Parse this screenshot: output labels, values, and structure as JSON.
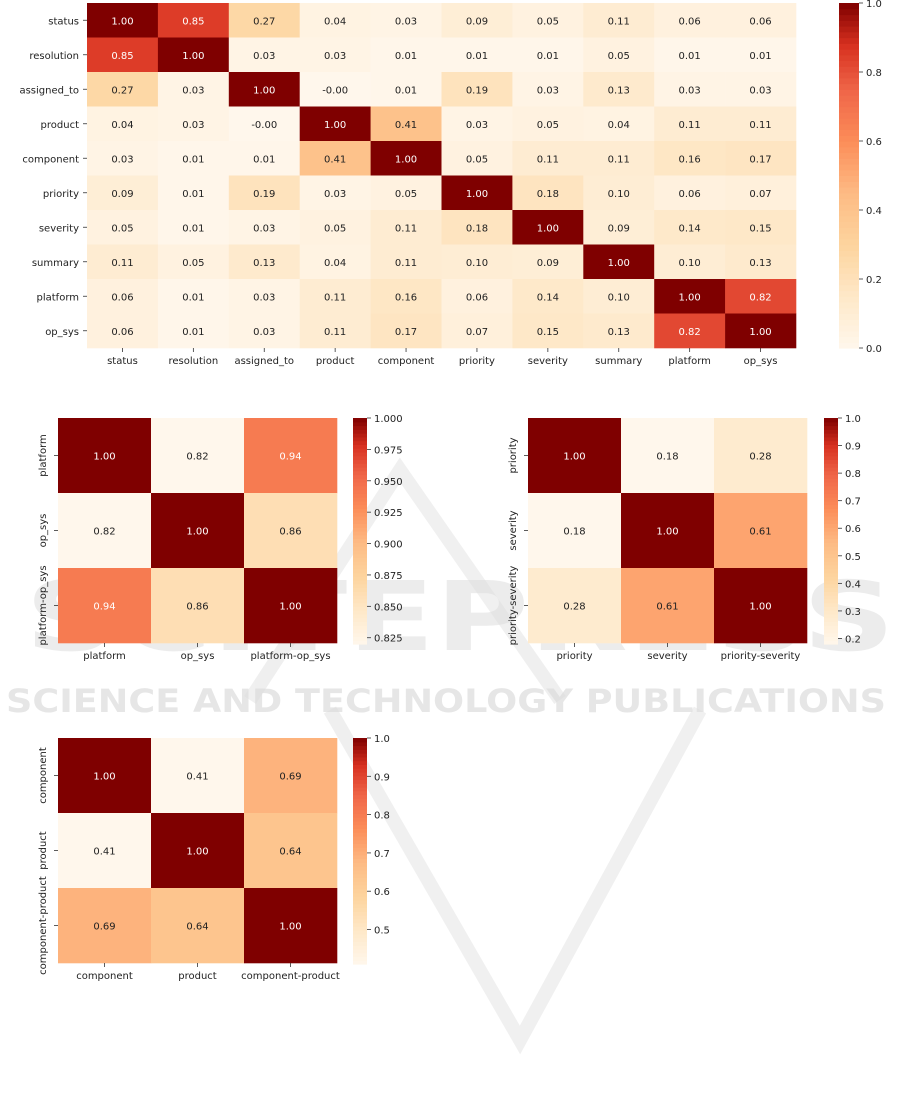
{
  "watermark": {
    "logo_text": "SCITEPRESS",
    "tagline": "SCIENCE AND TECHNOLOGY PUBLICATIONS"
  },
  "chart_data": [
    {
      "type": "heatmap",
      "title": "",
      "labels": [
        "status",
        "resolution",
        "assigned_to",
        "product",
        "component",
        "priority",
        "severity",
        "summary",
        "platform",
        "op_sys"
      ],
      "matrix": [
        [
          "1.00",
          "0.85",
          "0.27",
          "0.04",
          "0.03",
          "0.09",
          "0.05",
          "0.11",
          "0.06",
          "0.06"
        ],
        [
          "0.85",
          "1.00",
          "0.03",
          "0.03",
          "0.01",
          "0.01",
          "0.01",
          "0.05",
          "0.01",
          "0.01"
        ],
        [
          "0.27",
          "0.03",
          "1.00",
          "-0.00",
          "0.01",
          "0.19",
          "0.03",
          "0.13",
          "0.03",
          "0.03"
        ],
        [
          "0.04",
          "0.03",
          "-0.00",
          "1.00",
          "0.41",
          "0.03",
          "0.05",
          "0.04",
          "0.11",
          "0.11"
        ],
        [
          "0.03",
          "0.01",
          "0.01",
          "0.41",
          "1.00",
          "0.05",
          "0.11",
          "0.11",
          "0.16",
          "0.17"
        ],
        [
          "0.09",
          "0.01",
          "0.19",
          "0.03",
          "0.05",
          "1.00",
          "0.18",
          "0.10",
          "0.06",
          "0.07"
        ],
        [
          "0.05",
          "0.01",
          "0.03",
          "0.05",
          "0.11",
          "0.18",
          "1.00",
          "0.09",
          "0.14",
          "0.15"
        ],
        [
          "0.11",
          "0.05",
          "0.13",
          "0.04",
          "0.11",
          "0.10",
          "0.09",
          "1.00",
          "0.10",
          "0.13"
        ],
        [
          "0.06",
          "0.01",
          "0.03",
          "0.11",
          "0.16",
          "0.06",
          "0.14",
          "0.10",
          "1.00",
          "0.82"
        ],
        [
          "0.06",
          "0.01",
          "0.03",
          "0.11",
          "0.17",
          "0.07",
          "0.15",
          "0.13",
          "0.82",
          "1.00"
        ]
      ],
      "colorbar": {
        "min": 0.0,
        "max": 1.0,
        "ticks": [
          "0.0",
          "0.2",
          "0.4",
          "0.6",
          "0.8",
          "1.0"
        ]
      }
    },
    {
      "type": "heatmap",
      "title": "",
      "labels": [
        "platform",
        "op_sys",
        "platform-op_sys"
      ],
      "matrix": [
        [
          "1.00",
          "0.82",
          "0.94"
        ],
        [
          "0.82",
          "1.00",
          "0.86"
        ],
        [
          "0.94",
          "0.86",
          "1.00"
        ]
      ],
      "colorbar": {
        "min": 0.82,
        "max": 1.0,
        "ticks": [
          "0.825",
          "0.850",
          "0.875",
          "0.900",
          "0.925",
          "0.950",
          "0.975",
          "1.000"
        ]
      }
    },
    {
      "type": "heatmap",
      "title": "",
      "labels": [
        "priority",
        "severity",
        "priority-severity"
      ],
      "matrix": [
        [
          "1.00",
          "0.18",
          "0.28"
        ],
        [
          "0.18",
          "1.00",
          "0.61"
        ],
        [
          "0.28",
          "0.61",
          "1.00"
        ]
      ],
      "colorbar": {
        "min": 0.18,
        "max": 1.0,
        "ticks": [
          "0.2",
          "0.3",
          "0.4",
          "0.5",
          "0.6",
          "0.7",
          "0.8",
          "0.9",
          "1.0"
        ]
      }
    },
    {
      "type": "heatmap",
      "title": "",
      "labels": [
        "component",
        "product",
        "component-product"
      ],
      "matrix": [
        [
          "1.00",
          "0.41",
          "0.69"
        ],
        [
          "0.41",
          "1.00",
          "0.64"
        ],
        [
          "0.69",
          "0.64",
          "1.00"
        ]
      ],
      "colorbar": {
        "min": 0.41,
        "max": 1.0,
        "ticks": [
          "0.5",
          "0.6",
          "0.7",
          "0.8",
          "0.9",
          "1.0"
        ]
      }
    }
  ]
}
